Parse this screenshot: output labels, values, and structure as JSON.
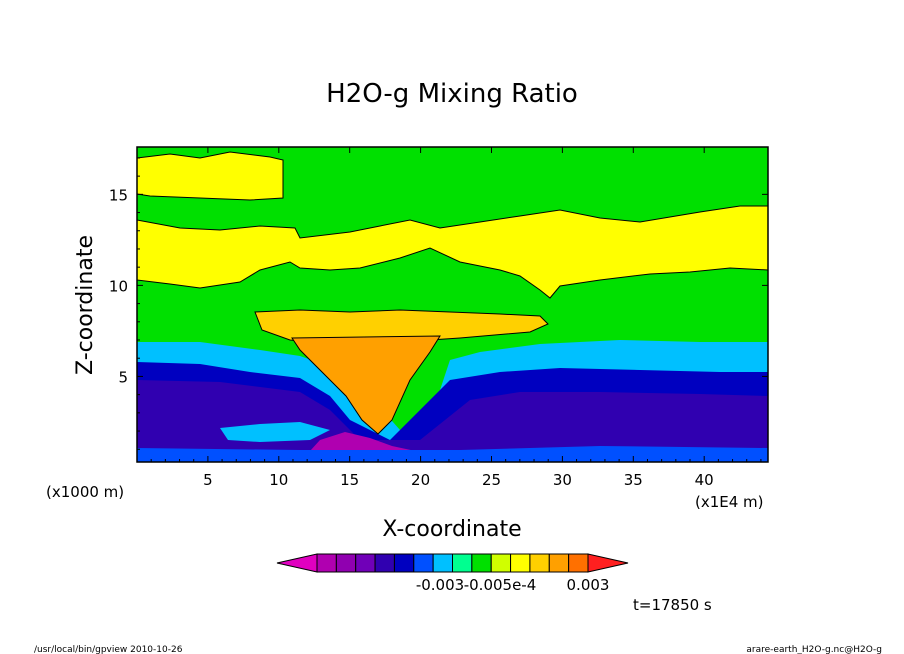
{
  "chart_data": {
    "type": "heatmap",
    "title": "H2O-g Mixing Ratio",
    "xlabel": "X-coordinate",
    "ylabel": "Z-coordinate",
    "x_unit": "(x1000 m)",
    "x_unit_right": "(x1E4 m)",
    "xlim": [
      0,
      44.5
    ],
    "ylim": [
      0.3,
      17.6
    ],
    "xticks": [
      "5",
      "10",
      "15",
      "20",
      "25",
      "30",
      "35",
      "40"
    ],
    "yticks": [
      "5",
      "10",
      "15"
    ],
    "colorbar": {
      "colors": [
        "#e000c0",
        "#b000b0",
        "#9000b0",
        "#7000b8",
        "#3000b0",
        "#0000c0",
        "#0050ff",
        "#00c0ff",
        "#00ff90",
        "#00e000",
        "#d0ff00",
        "#ffff00",
        "#ffd000",
        "#ffa000",
        "#ff7000",
        "#ff2020"
      ],
      "labels": [
        "-0.003",
        "-0.005e-4",
        "0.003"
      ]
    },
    "time_label": "t=17850 s",
    "footer_left": "/usr/local/bin/gpview  2010-10-26",
    "footer_right": "arare-earth_H2O-g.nc@H2O-g"
  }
}
